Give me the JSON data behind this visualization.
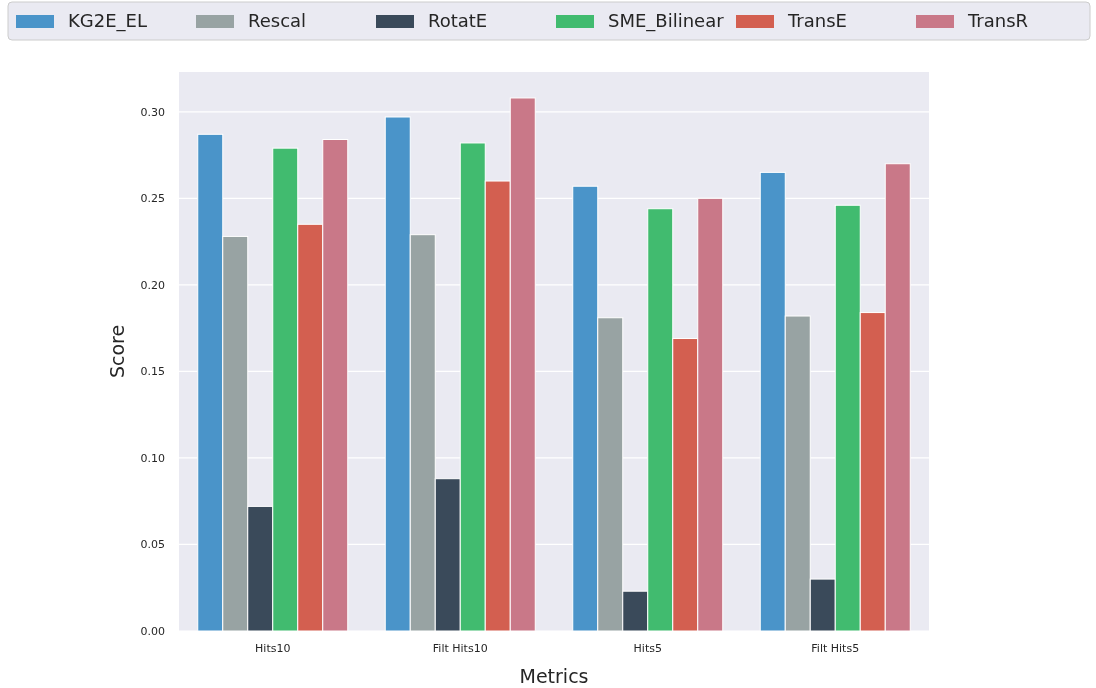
{
  "chart_data": {
    "type": "bar",
    "xlabel": "Metrics",
    "ylabel": "Score",
    "categories": [
      "Hits10",
      "Filt Hits10",
      "Hits5",
      "Filt Hits5"
    ],
    "series": [
      {
        "name": "KG2E_EL",
        "color": "#4a94c9",
        "values": [
          0.287,
          0.297,
          0.257,
          0.265
        ]
      },
      {
        "name": "Rescal",
        "color": "#98a3a3",
        "values": [
          0.228,
          0.229,
          0.181,
          0.182
        ]
      },
      {
        "name": "RotatE",
        "color": "#3a4a5a",
        "values": [
          0.072,
          0.088,
          0.023,
          0.03
        ]
      },
      {
        "name": "SME_Bilinear",
        "color": "#41bb6f",
        "values": [
          0.279,
          0.282,
          0.244,
          0.246
        ]
      },
      {
        "name": "TransE",
        "color": "#d35f50",
        "values": [
          0.235,
          0.26,
          0.169,
          0.184
        ]
      },
      {
        "name": "TransR",
        "color": "#c97888",
        "values": [
          0.284,
          0.308,
          0.25,
          0.27
        ]
      }
    ],
    "ylim": [
      0,
      0.323
    ],
    "yticks": [
      {
        "value": 0,
        "label": "0.00"
      },
      {
        "value": 0.05,
        "label": "0.05"
      },
      {
        "value": 0.1,
        "label": "0.10"
      },
      {
        "value": 0.15,
        "label": "0.15"
      },
      {
        "value": 0.2,
        "label": "0.20"
      },
      {
        "value": 0.25,
        "label": "0.25"
      },
      {
        "value": 0.3,
        "label": "0.30"
      }
    ],
    "grid": "y",
    "legend": "top"
  }
}
